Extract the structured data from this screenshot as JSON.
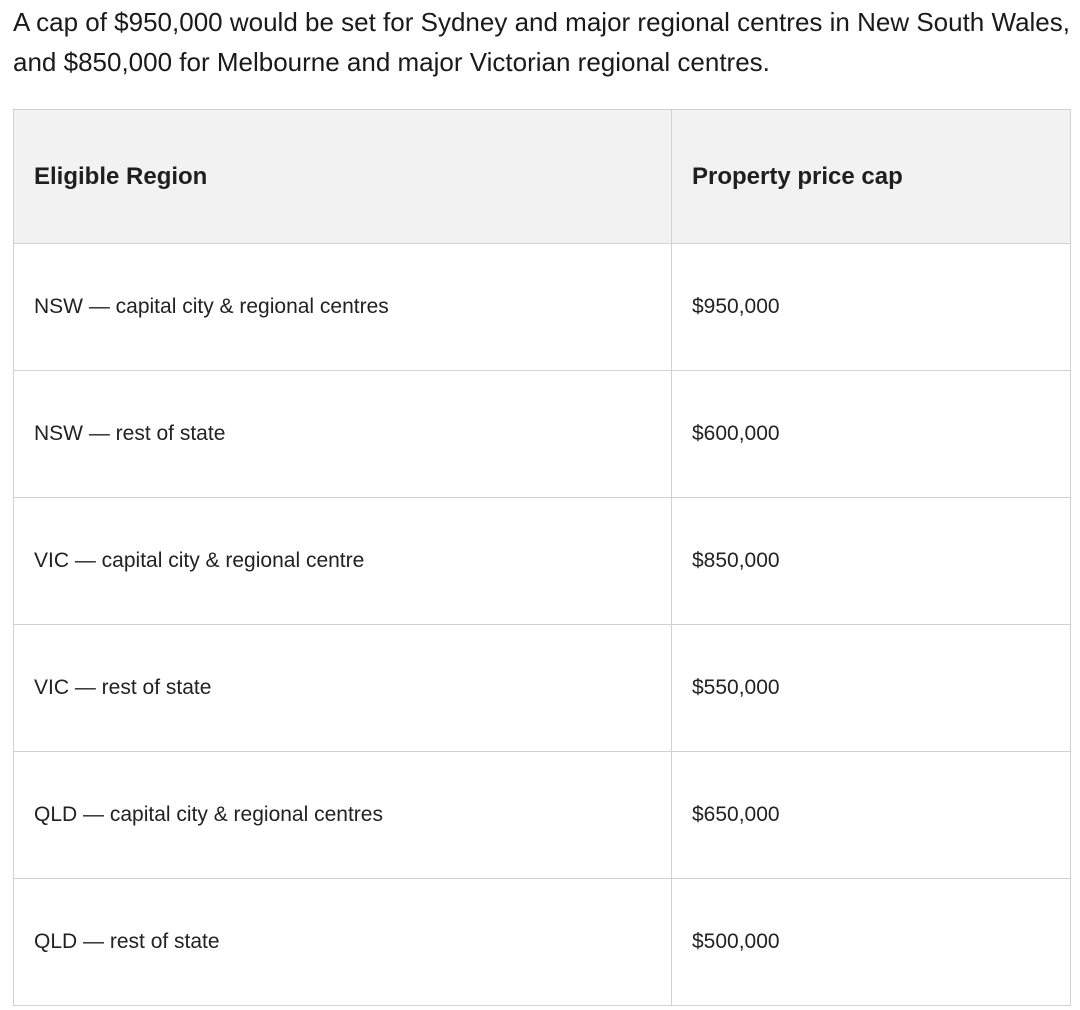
{
  "article": {
    "paragraph": "A cap of $950,000 would be set for Sydney and major regional centres in New South Wales, and $850,000 for Melbourne and major Victorian regional centres."
  },
  "table": {
    "headers": [
      "Eligible Region",
      "Property price cap"
    ],
    "rows": [
      {
        "region": "NSW — capital city & regional centres",
        "cap": "$950,000"
      },
      {
        "region": "NSW — rest of state",
        "cap": "$600,000"
      },
      {
        "region": "VIC — capital city & regional centre",
        "cap": "$850,000"
      },
      {
        "region": "VIC — rest of state",
        "cap": "$550,000"
      },
      {
        "region": "QLD — capital city & regional centres",
        "cap": "$650,000"
      },
      {
        "region": "QLD — rest of state",
        "cap": "$500,000"
      }
    ]
  },
  "colors": {
    "header_background": "#f2f2f2",
    "border": "#d2d2d2",
    "text": "#1f1f1f"
  }
}
